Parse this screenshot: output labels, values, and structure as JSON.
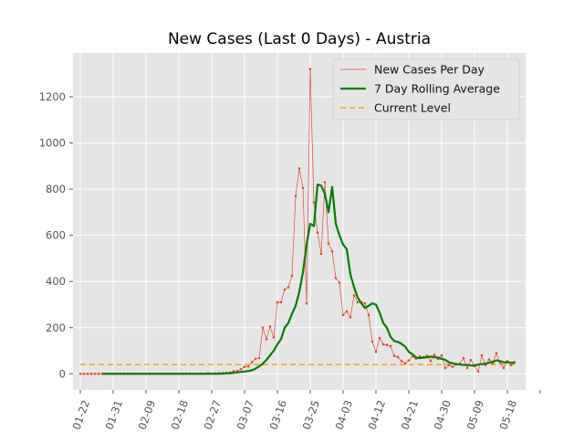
{
  "chart_data": {
    "type": "line",
    "title": "New Cases (Last 0 Days) - Austria",
    "xlabel": "",
    "ylabel": "",
    "x_start": "2020-01-22",
    "x_end": "2020-05-21",
    "xlim": [
      "2020-01-20",
      "2020-05-23"
    ],
    "ylim": [
      -70,
      1390
    ],
    "x_ticks": [
      "01-22",
      "01-31",
      "02-09",
      "02-18",
      "02-27",
      "03-07",
      "03-16",
      "03-25",
      "04-03",
      "04-12",
      "04-21",
      "04-30",
      "05-09",
      "05-18",
      ""
    ],
    "y_ticks": [
      0,
      200,
      400,
      600,
      800,
      1000,
      1200
    ],
    "grid": true,
    "legend_position": "top-right",
    "style": "ggplot",
    "series": [
      {
        "name": "New Cases Per Day",
        "color": "#E24A33",
        "marker": "dot",
        "values": [
          0,
          0,
          0,
          0,
          0,
          0,
          0,
          0,
          0,
          0,
          0,
          0,
          0,
          0,
          0,
          0,
          0,
          0,
          0,
          0,
          0,
          0,
          0,
          0,
          0,
          0,
          0,
          0,
          0,
          0,
          0,
          0,
          0,
          0,
          0,
          2,
          1,
          2,
          3,
          4,
          4,
          5,
          11,
          12,
          20,
          30,
          32,
          50,
          65,
          68,
          200,
          150,
          205,
          158,
          310,
          310,
          365,
          375,
          425,
          770,
          890,
          805,
          305,
          1320,
          742,
          612,
          520,
          830,
          565,
          530,
          415,
          395,
          255,
          270,
          245,
          340,
          310,
          310,
          305,
          255,
          140,
          95,
          155,
          128,
          125,
          120,
          78,
          72,
          55,
          45,
          58,
          75,
          65,
          75,
          72,
          78,
          55,
          82,
          65,
          80,
          25,
          38,
          30,
          40,
          45,
          68,
          25,
          60,
          35,
          10,
          80,
          38,
          62,
          45,
          90,
          48,
          25,
          55,
          38,
          50
        ]
      },
      {
        "name": "7 Day Rolling Average",
        "color": "#008000",
        "values": [
          null,
          null,
          null,
          null,
          null,
          null,
          0,
          0,
          0,
          0,
          0,
          0,
          0,
          0,
          0,
          0,
          0,
          0,
          0,
          0,
          0,
          0,
          0,
          0,
          0,
          0,
          0,
          0,
          0,
          0,
          0,
          0,
          0,
          0,
          0,
          0,
          0,
          0,
          0,
          1,
          2,
          3,
          4,
          6,
          8,
          10,
          12,
          15,
          22,
          32,
          44,
          60,
          80,
          100,
          128,
          150,
          200,
          220,
          260,
          295,
          355,
          440,
          560,
          650,
          640,
          820,
          815,
          780,
          700,
          810,
          650,
          600,
          560,
          540,
          430,
          375,
          330,
          305,
          285,
          295,
          305,
          300,
          265,
          220,
          200,
          160,
          142,
          138,
          130,
          118,
          95,
          85,
          70,
          68,
          70,
          72,
          75,
          72,
          70,
          65,
          60,
          50,
          45,
          42,
          40,
          38,
          38,
          36,
          35,
          40,
          42,
          44,
          48,
          52,
          58,
          55,
          50,
          50,
          48,
          48
        ]
      },
      {
        "name": "Current Level",
        "color": "#FFA500",
        "dashed": true,
        "values": [
          40
        ]
      }
    ]
  }
}
